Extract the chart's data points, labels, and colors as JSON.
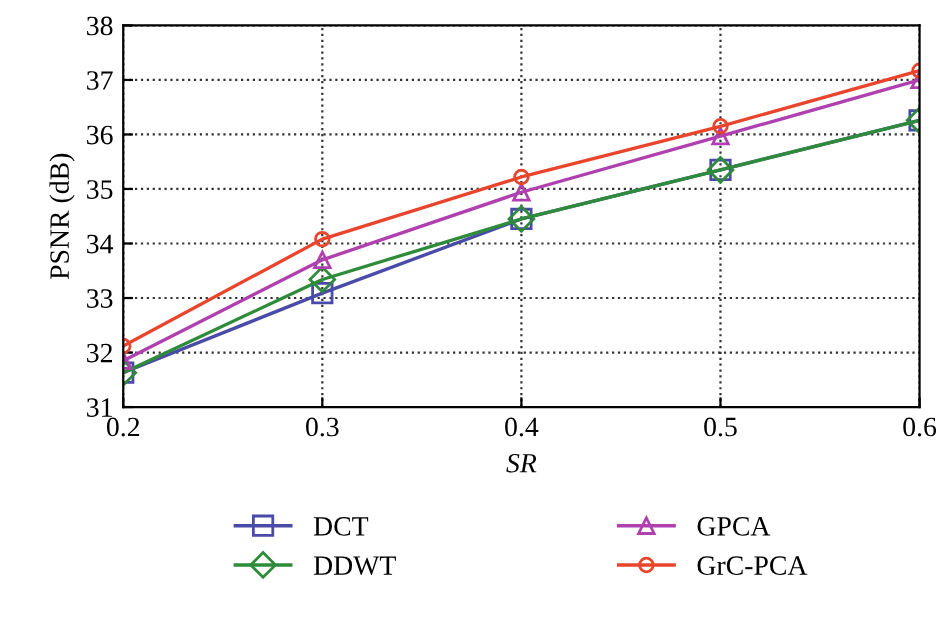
{
  "chart_data": {
    "type": "line",
    "xlabel": "SR",
    "ylabel": "PSNR (dB)",
    "x": [
      0.2,
      0.3,
      0.4,
      0.5,
      0.6
    ],
    "series": [
      {
        "name": "DCT",
        "color": "#4a4aa8",
        "marker": "square",
        "values": [
          31.63,
          33.09,
          34.45,
          35.35,
          36.26
        ]
      },
      {
        "name": "DDWT",
        "color": "#2e8b3a",
        "marker": "diamond",
        "values": [
          31.63,
          33.34,
          34.45,
          35.35,
          36.26
        ]
      },
      {
        "name": "GPCA",
        "color": "#b040b0",
        "marker": "triangle",
        "values": [
          31.85,
          33.7,
          34.94,
          35.97,
          37.0
        ]
      },
      {
        "name": "GrC-PCA",
        "color": "#e8452c",
        "marker": "circle",
        "values": [
          32.12,
          34.08,
          35.22,
          36.15,
          37.17
        ]
      }
    ],
    "xlim": [
      0.2,
      0.6
    ],
    "ylim": [
      31,
      38
    ],
    "xticks": [
      0.2,
      0.3,
      0.4,
      0.5,
      0.6
    ],
    "yticks": [
      31,
      32,
      33,
      34,
      35,
      36,
      37,
      38
    ],
    "grid": true,
    "legend": "bottom",
    "line_style": "solid"
  }
}
